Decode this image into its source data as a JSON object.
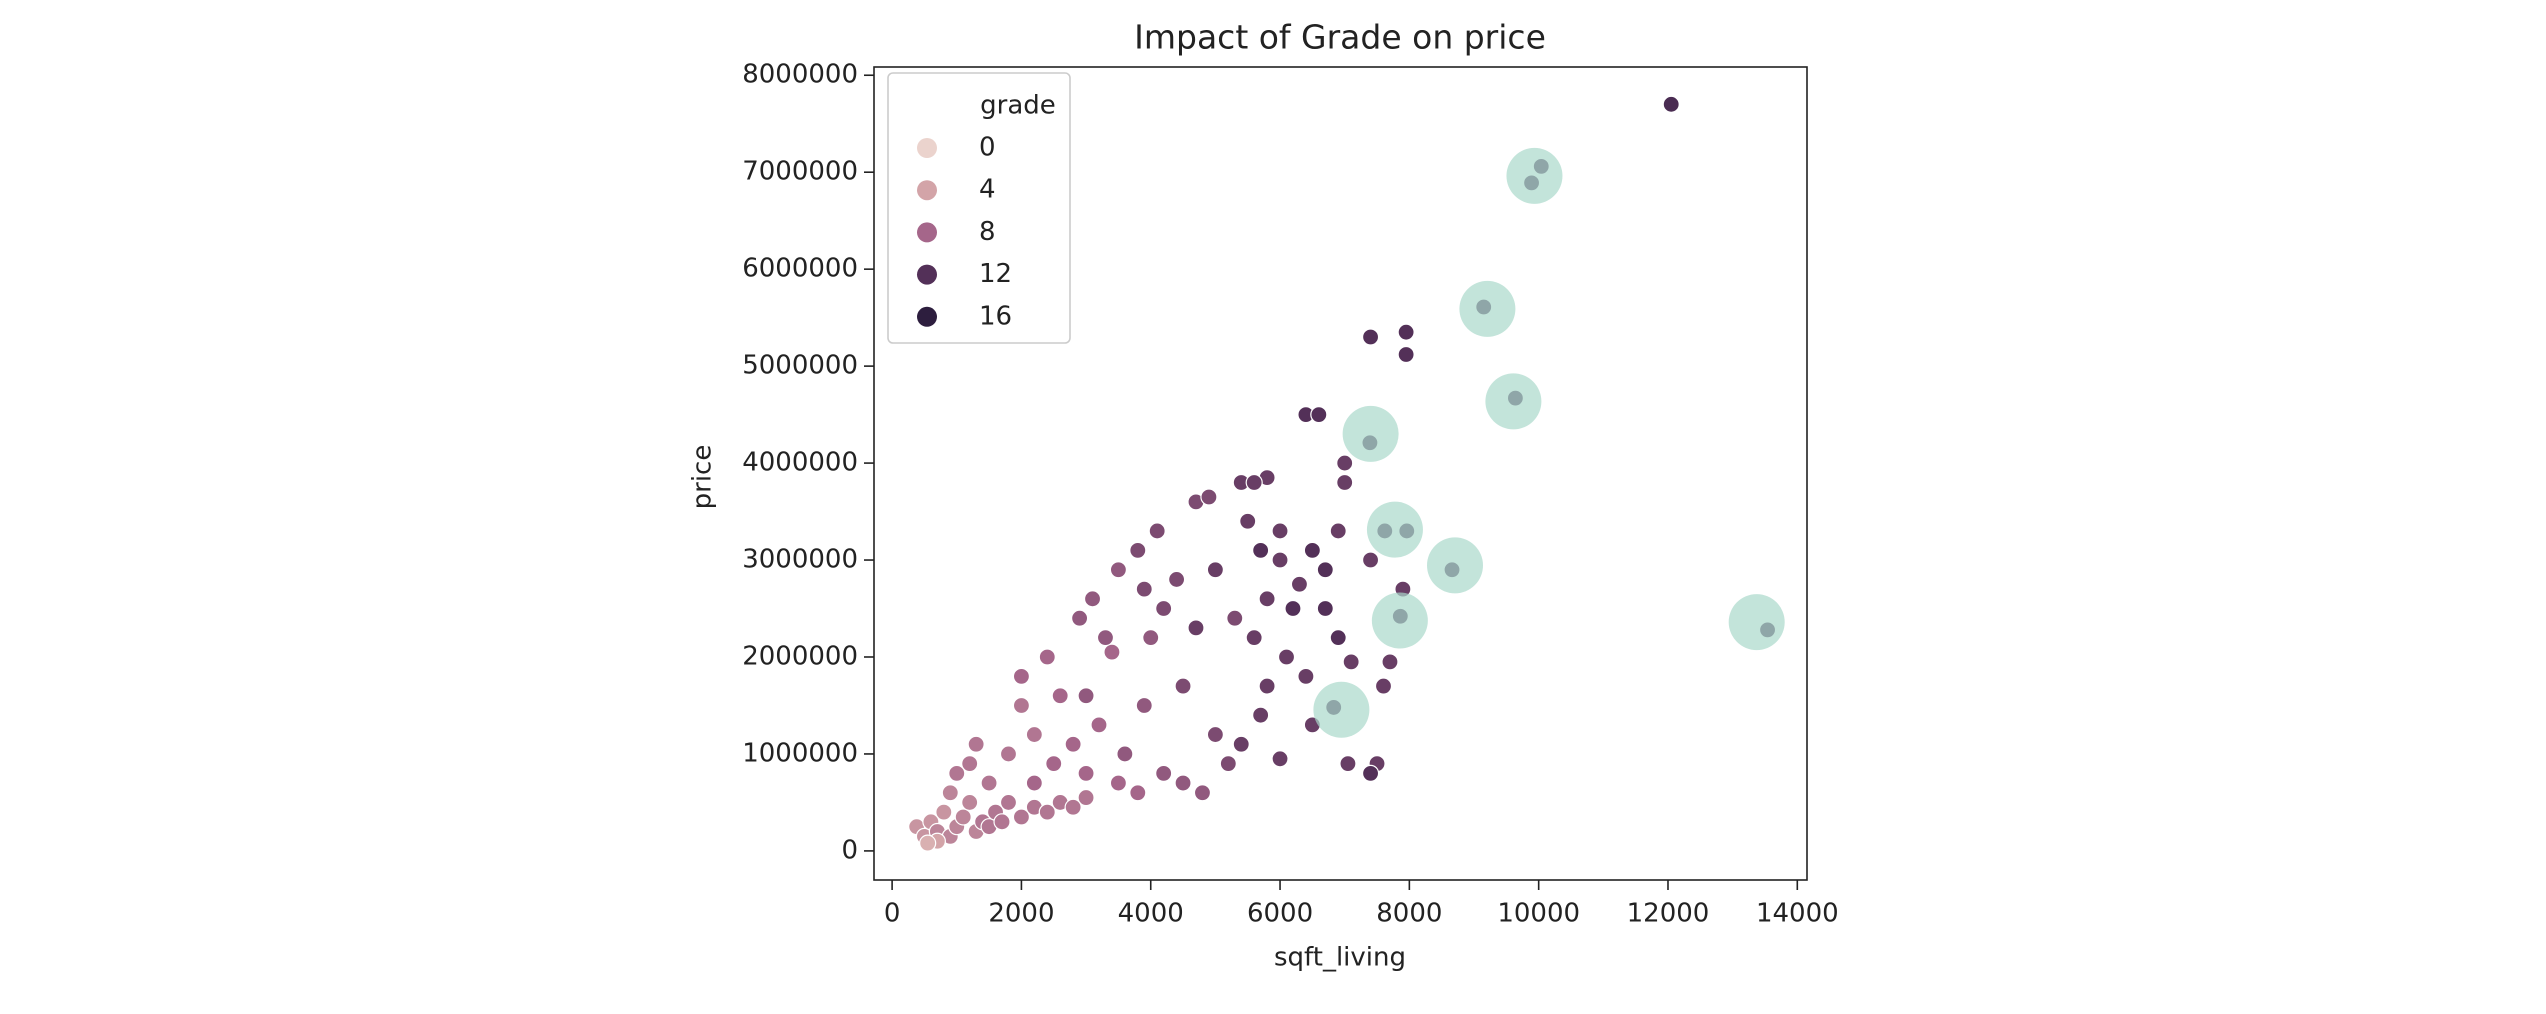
{
  "chart_data": {
    "type": "scatter",
    "title": "Impact of Grade on price",
    "x_label": "sqft_living",
    "y_label": "price",
    "xlim": [
      -280,
      14150
    ],
    "ylim": [
      -300000,
      8085000
    ],
    "xticks": [
      0,
      2000,
      4000,
      6000,
      8000,
      10000,
      12000,
      14000
    ],
    "yticks": [
      0,
      1000000,
      2000000,
      3000000,
      4000000,
      5000000,
      6000000,
      7000000,
      8000000
    ],
    "legend_title": "grade",
    "legend_corner": "upper left",
    "hue_ticks": [
      0,
      4,
      8,
      12,
      16
    ],
    "hue_colors": [
      "#ebd3cd",
      "#d3a4a8",
      "#a5668a",
      "#533058",
      "#2d1e3e"
    ],
    "x": [
      380,
      500,
      600,
      700,
      800,
      900,
      1000,
      1100,
      1200,
      1300,
      1400,
      700,
      550,
      1500,
      1600,
      1000,
      1200,
      900,
      1700,
      1800,
      2000,
      2200,
      1500,
      1800,
      2400,
      2600,
      1300,
      2000,
      2200,
      2800,
      3000,
      2200,
      2500,
      2800,
      3000,
      2600,
      2400,
      3200,
      3500,
      2000,
      3800,
      3400,
      3000,
      3300,
      3600,
      3900,
      4200,
      2900,
      3100,
      4500,
      4000,
      3500,
      4800,
      3800,
      4100,
      4400,
      4700,
      4900,
      4500,
      5000,
      4200,
      5300,
      5200,
      3900,
      5500,
      5400,
      5000,
      5600,
      5800,
      6000,
      5700,
      6100,
      5800,
      6400,
      5400,
      6000,
      4700,
      5700,
      6200,
      6700,
      6900,
      6500,
      12050,
      7400,
      7950,
      7950,
      6400,
      6600,
      7000,
      7000,
      5800,
      5600,
      6900,
      6000,
      6300,
      7400,
      7900,
      6700,
      7700,
      7100,
      7600,
      7500,
      7400,
      7050,
      6500,
      9890,
      10040,
      9150,
      9640,
      7390,
      7620,
      7960,
      8660,
      7860,
      13540,
      6830
    ],
    "y": [
      250000,
      150000,
      300000,
      200000,
      400000,
      150000,
      250000,
      350000,
      500000,
      200000,
      300000,
      100000,
      80000,
      250000,
      400000,
      800000,
      900000,
      600000,
      300000,
      500000,
      350000,
      450000,
      700000,
      1000000,
      400000,
      500000,
      1100000,
      1500000,
      1200000,
      450000,
      550000,
      700000,
      900000,
      1100000,
      800000,
      1600000,
      2000000,
      1300000,
      700000,
      1800000,
      600000,
      2050000,
      1600000,
      2200000,
      1000000,
      1500000,
      800000,
      2400000,
      2600000,
      700000,
      2200000,
      2900000,
      600000,
      3100000,
      3300000,
      2800000,
      3600000,
      3650000,
      1700000,
      1200000,
      2500000,
      2400000,
      900000,
      2700000,
      3400000,
      3800000,
      2900000,
      2200000,
      1700000,
      3000000,
      1400000,
      2000000,
      2600000,
      1800000,
      1100000,
      950000,
      2300000,
      3100000,
      2500000,
      2900000,
      2200000,
      3100000,
      7700000,
      5300000,
      5350000,
      5120000,
      4500000,
      4500000,
      4000000,
      3800000,
      3850000,
      3800000,
      3300000,
      3300000,
      2750000,
      3000000,
      2700000,
      2500000,
      1950000,
      1950000,
      1700000,
      900000,
      800000,
      900000,
      1300000,
      6890000,
      7060000,
      5610000,
      4670000,
      4210000,
      3300000,
      3300000,
      2900000,
      2420000,
      2280000,
      1480000
    ],
    "hue": [
      5,
      5,
      5,
      6,
      5,
      6,
      6,
      6,
      6,
      6,
      7,
      4,
      3,
      7,
      7,
      7,
      7,
      6,
      7,
      7,
      7,
      7,
      7,
      7,
      7,
      7,
      7,
      7,
      7,
      7,
      7,
      8,
      8,
      8,
      8,
      8,
      8,
      8,
      8,
      8,
      8,
      8,
      9,
      9,
      9,
      9,
      9,
      9,
      9,
      9,
      9,
      9,
      9,
      10,
      10,
      10,
      10,
      10,
      10,
      10,
      10,
      10,
      10,
      10,
      11,
      11,
      11,
      11,
      11,
      11,
      11,
      11,
      11,
      11,
      11,
      11,
      11,
      12,
      12,
      12,
      12,
      12,
      13,
      12,
      12,
      12,
      12,
      12,
      11,
      11,
      11,
      11,
      11,
      11,
      11,
      11,
      11,
      12,
      11,
      11,
      11,
      11,
      12,
      11,
      11,
      12,
      12,
      12,
      12,
      12,
      12,
      12,
      12,
      12,
      12,
      12
    ],
    "highlights": {
      "color": "#a9d8cb",
      "x": [
        9935,
        9207,
        9609,
        7401,
        7777,
        8706,
        7853,
        13372,
        6949
      ],
      "y": [
        6962000,
        5590000,
        4636000,
        4301000,
        3314000,
        2945000,
        2376000,
        2360000,
        1456000
      ]
    }
  }
}
